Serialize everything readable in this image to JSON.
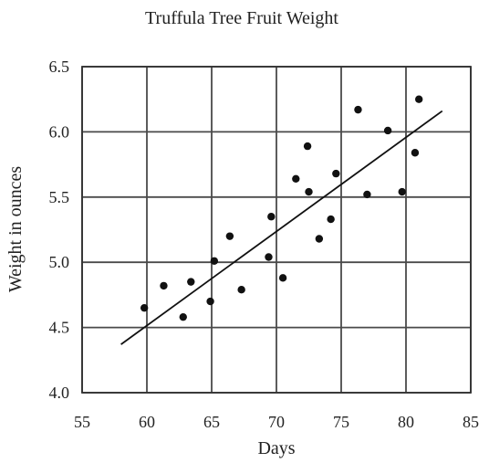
{
  "chart_data": {
    "type": "scatter",
    "title": "Truffula Tree Fruit Weight",
    "xlabel": "Days",
    "ylabel": "Weight in ounces",
    "xlim": [
      55,
      85
    ],
    "ylim": [
      4.0,
      6.5
    ],
    "x_ticks": [
      "55",
      "60",
      "65",
      "70",
      "75",
      "80",
      "85"
    ],
    "y_ticks": [
      "4.0",
      "4.5",
      "5.0",
      "5.5",
      "6.0",
      "6.5"
    ],
    "grid": true,
    "series": [
      {
        "points": [
          {
            "x": 59.8,
            "y": 4.65
          },
          {
            "x": 61.3,
            "y": 4.82
          },
          {
            "x": 62.8,
            "y": 4.58
          },
          {
            "x": 63.4,
            "y": 4.85
          },
          {
            "x": 64.9,
            "y": 4.7
          },
          {
            "x": 65.2,
            "y": 5.01
          },
          {
            "x": 66.4,
            "y": 5.2
          },
          {
            "x": 67.3,
            "y": 4.79
          },
          {
            "x": 69.4,
            "y": 5.04
          },
          {
            "x": 69.6,
            "y": 5.35
          },
          {
            "x": 70.5,
            "y": 4.88
          },
          {
            "x": 71.5,
            "y": 5.64
          },
          {
            "x": 72.4,
            "y": 5.89
          },
          {
            "x": 72.5,
            "y": 5.54
          },
          {
            "x": 73.3,
            "y": 5.18
          },
          {
            "x": 74.2,
            "y": 5.33
          },
          {
            "x": 74.6,
            "y": 5.68
          },
          {
            "x": 76.3,
            "y": 6.17
          },
          {
            "x": 77.0,
            "y": 5.52
          },
          {
            "x": 78.6,
            "y": 6.01
          },
          {
            "x": 79.7,
            "y": 5.54
          },
          {
            "x": 80.7,
            "y": 5.84
          },
          {
            "x": 81.0,
            "y": 6.25
          }
        ]
      }
    ],
    "trend_line": {
      "start": {
        "x": 58.0,
        "y": 4.37
      },
      "end": {
        "x": 82.8,
        "y": 6.16
      }
    }
  }
}
